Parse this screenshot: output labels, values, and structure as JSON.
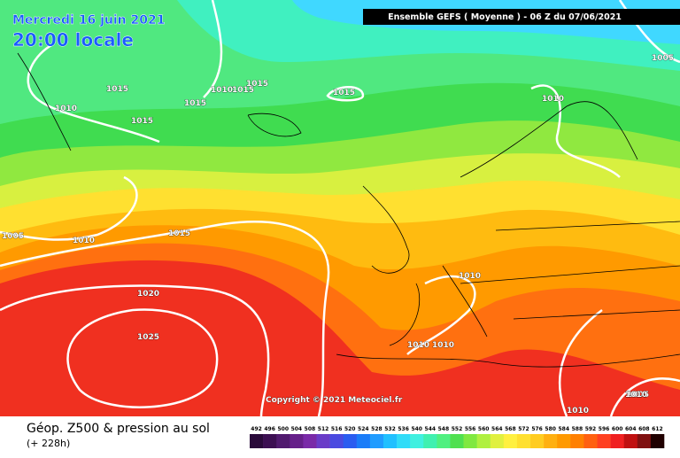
{
  "header": {
    "date": "Mercredi 16 juin 2021",
    "time": "20:00 locale",
    "run": "Ensemble GEFS  ( Moyenne )  -  06 Z du 07/06/2021"
  },
  "copyright": "Copyright © 2021 Meteociel.fr",
  "isobar_labels": [
    "1015",
    "1010",
    "1015",
    "1015",
    "1010",
    "1015",
    "1015",
    "1015",
    "1010",
    "1005",
    "1005",
    "1010",
    "1015",
    "1020",
    "1025",
    "1010",
    "1010",
    "1010",
    "1010",
    "1005",
    "1010",
    "1010"
  ],
  "footer": {
    "title": "Géop. Z500 & pression au sol",
    "subtitle": "(+ 228h)"
  },
  "legend": {
    "values": [
      492,
      496,
      500,
      504,
      508,
      512,
      516,
      520,
      524,
      528,
      532,
      536,
      540,
      544,
      548,
      552,
      556,
      560,
      564,
      568,
      572,
      576,
      580,
      584,
      588,
      592,
      596,
      600,
      604,
      608,
      612
    ],
    "colors": [
      "#2a0a3a",
      "#3c0f52",
      "#501a6e",
      "#66208a",
      "#7a2aa8",
      "#6a3cc8",
      "#4a4ae0",
      "#2a5cf0",
      "#1a7cf8",
      "#209cff",
      "#20c0ff",
      "#30dcf8",
      "#40f0e0",
      "#40f0b0",
      "#50f080",
      "#50e050",
      "#80e840",
      "#b0f040",
      "#e0f040",
      "#fff040",
      "#ffe030",
      "#ffcc20",
      "#ffb010",
      "#ff9a00",
      "#ff8000",
      "#ff6010",
      "#ff4020",
      "#f02020",
      "#c01010",
      "#801010",
      "#200000"
    ]
  }
}
